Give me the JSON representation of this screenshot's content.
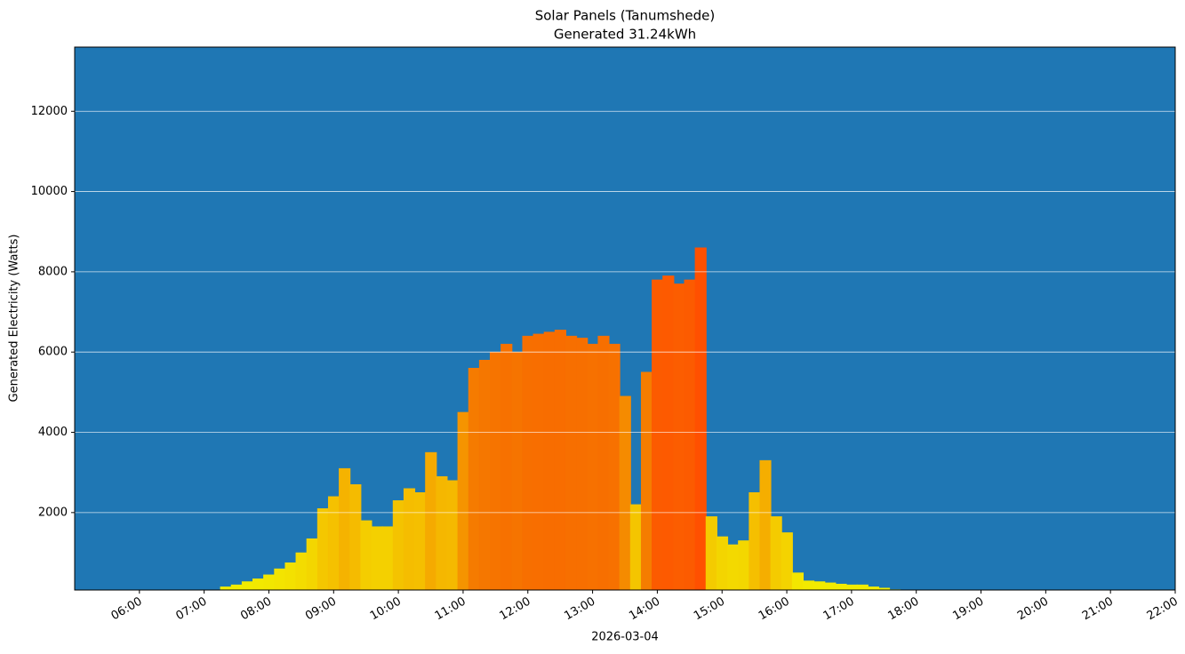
{
  "chart_data": {
    "type": "bar",
    "title": "Solar Panels (Tanumshede)",
    "subtitle": "Generated 31.24kWh",
    "y_label": "Generated Electricity (Watts)",
    "x_label": "2026-03-04",
    "background": "#1f77b4",
    "grid": true,
    "colormap": [
      "#f2f000",
      "#f5b800",
      "#f57800",
      "#ff5000"
    ],
    "x": [
      "06:40",
      "06:50",
      "07:00",
      "07:10",
      "07:20",
      "07:30",
      "07:40",
      "07:50",
      "08:00",
      "08:10",
      "08:20",
      "08:30",
      "08:40",
      "08:50",
      "09:00",
      "09:10",
      "09:20",
      "09:30",
      "09:40",
      "09:50",
      "10:00",
      "10:10",
      "10:20",
      "10:30",
      "10:40",
      "10:50",
      "11:00",
      "11:10",
      "11:20",
      "11:30",
      "11:40",
      "11:50",
      "12:00",
      "12:10",
      "12:20",
      "12:30",
      "12:40",
      "12:50",
      "13:00",
      "13:10",
      "13:20",
      "13:30",
      "13:40",
      "13:50",
      "14:00",
      "14:10",
      "14:20",
      "14:30",
      "14:40",
      "14:50",
      "15:00",
      "15:10",
      "15:20",
      "15:30",
      "15:40",
      "15:50",
      "16:00",
      "16:10",
      "16:20",
      "16:30",
      "16:40",
      "16:50",
      "17:00",
      "17:10",
      "17:20",
      "17:30",
      "17:40"
    ],
    "values": [
      30,
      30,
      30,
      50,
      150,
      200,
      280,
      350,
      450,
      600,
      750,
      1000,
      1350,
      2100,
      2400,
      3100,
      2700,
      1800,
      1650,
      1650,
      2300,
      2600,
      2500,
      3500,
      2900,
      2800,
      4500,
      5600,
      5800,
      6000,
      6200,
      6000,
      6400,
      6450,
      6500,
      6550,
      6400,
      6350,
      6200,
      6400,
      6200,
      4900,
      2200,
      5500,
      7800,
      7900,
      7700,
      7800,
      8600,
      1900,
      1400,
      1200,
      1300,
      2500,
      3300,
      1900,
      1500,
      500,
      300,
      280,
      250,
      220,
      200,
      200,
      150,
      120,
      80
    ],
    "xlim": [
      "05:00",
      "22:00"
    ],
    "xticks": [
      "06:00",
      "07:00",
      "08:00",
      "09:00",
      "10:00",
      "11:00",
      "12:00",
      "13:00",
      "14:00",
      "15:00",
      "16:00",
      "17:00",
      "18:00",
      "19:00",
      "20:00",
      "21:00",
      "22:00"
    ],
    "ylim": [
      70,
      13600
    ],
    "yticks": [
      2000,
      4000,
      6000,
      8000,
      10000,
      12000
    ]
  }
}
